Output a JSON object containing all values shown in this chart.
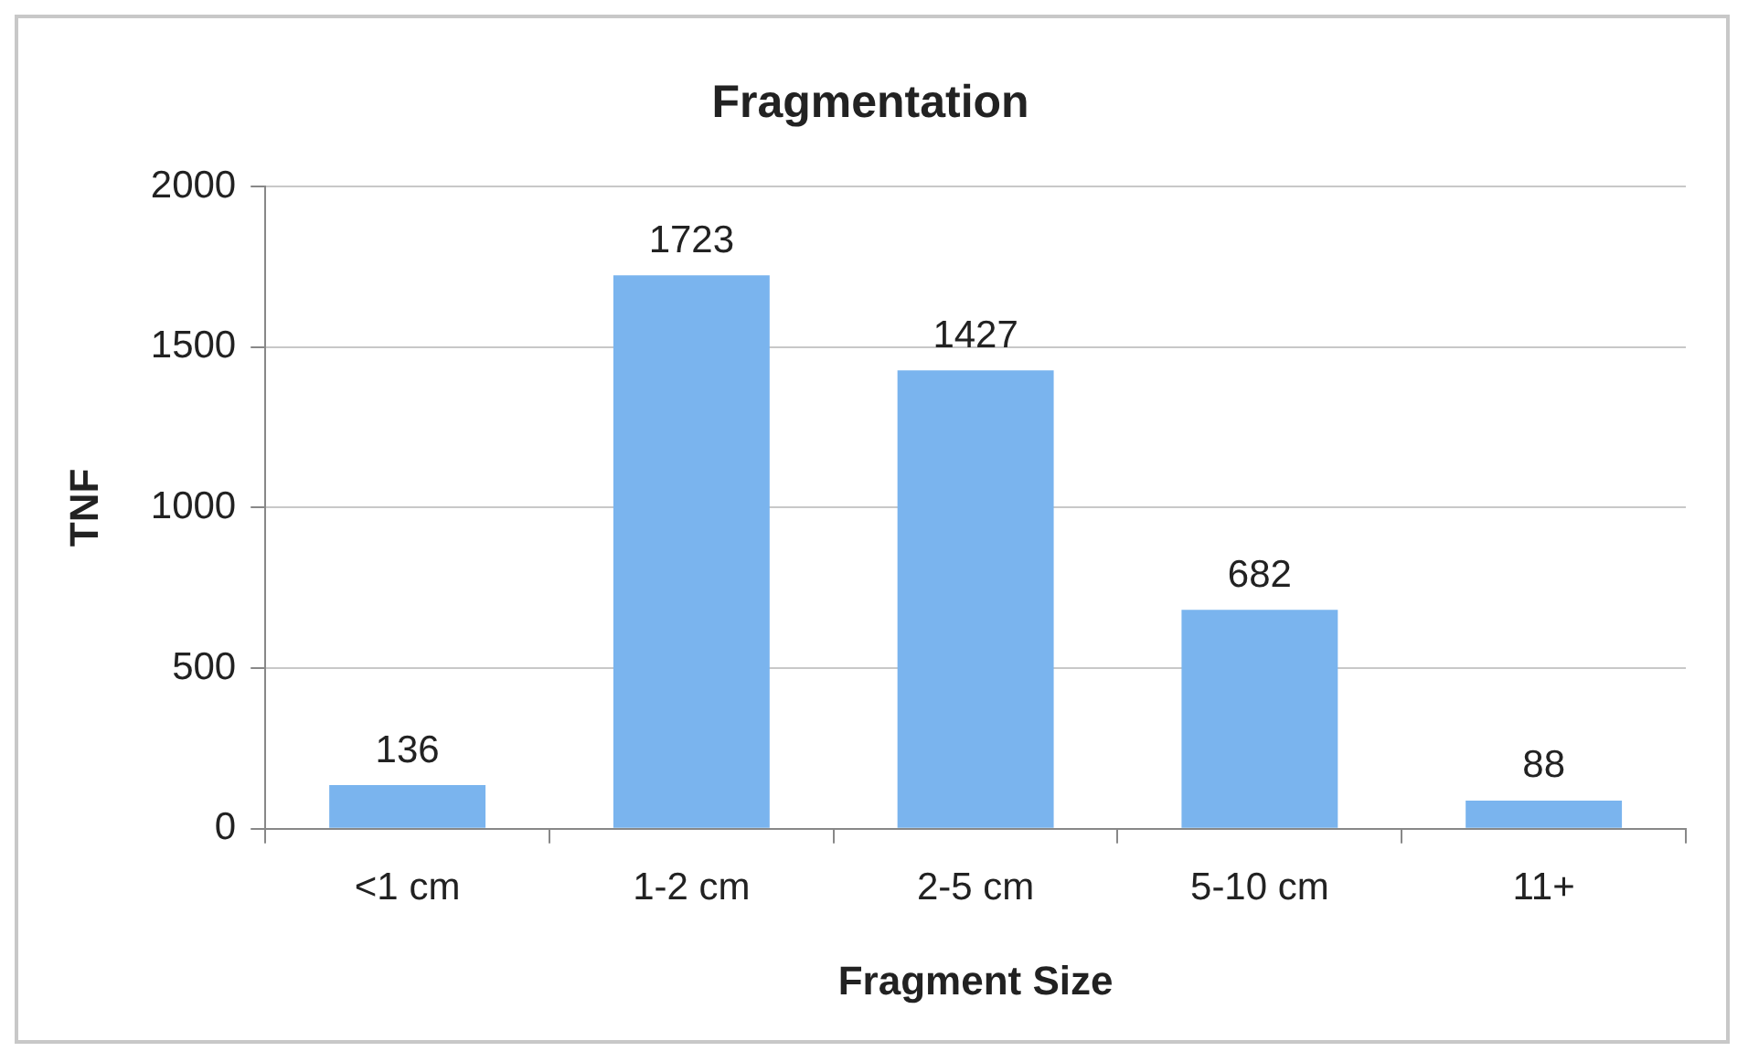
{
  "chart_data": {
    "type": "bar",
    "title": "Fragmentation",
    "xlabel": "Fragment Size",
    "ylabel": "TNF",
    "categories": [
      "<1 cm",
      "1-2 cm",
      "2-5 cm",
      "5-10 cm",
      "11+"
    ],
    "values": [
      136,
      1723,
      1427,
      682,
      88
    ],
    "color": "#7ab4ee",
    "ylim": [
      0,
      2000
    ],
    "yticks": [
      0,
      500,
      1000,
      1500,
      2000
    ],
    "grid": "y",
    "data_labels": true
  }
}
